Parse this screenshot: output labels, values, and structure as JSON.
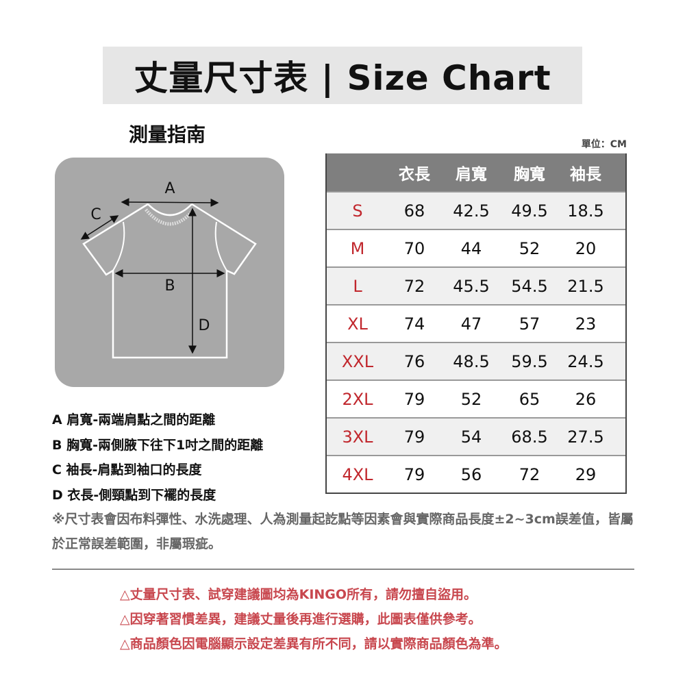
{
  "title": "丈量尺寸表 | Size Chart",
  "guide_title": "測量指南",
  "unit": "單位：CM",
  "diagram_labels": {
    "a": "A",
    "b": "B",
    "c": "C",
    "d": "D"
  },
  "table": {
    "headers": [
      "",
      "衣長",
      "肩寬",
      "胸寬",
      "袖長"
    ],
    "rows": [
      [
        "S",
        "68",
        "42.5",
        "49.5",
        "18.5"
      ],
      [
        "M",
        "70",
        "44",
        "52",
        "20"
      ],
      [
        "L",
        "72",
        "45.5",
        "54.5",
        "21.5"
      ],
      [
        "XL",
        "74",
        "47",
        "57",
        "23"
      ],
      [
        "XXL",
        "76",
        "48.5",
        "59.5",
        "24.5"
      ],
      [
        "2XL",
        "79",
        "52",
        "65",
        "26"
      ],
      [
        "3XL",
        "79",
        "54",
        "68.5",
        "27.5"
      ],
      [
        "4XL",
        "79",
        "56",
        "72",
        "29"
      ]
    ]
  },
  "notes": [
    "A 肩寬-兩端肩點之間的距離",
    "B 胸寬-兩側腋下往下1吋之間的距離",
    "C 袖長-肩點到袖口的長度",
    "D 衣長-側頸點到下襬的長度"
  ],
  "disclaimer": "※尺寸表會因布料彈性、水洗處理、人為測量起訖點等因素會與實際商品長度±2~3cm誤差值，皆屬於正常誤差範圍，非屬瑕疵。",
  "warnings": [
    "△丈量尺寸表、試穿建議圖均為KINGO所有，請勿擅自盜用。",
    "△因穿著習慣差異，建議丈量後再進行選購，此圖表僅供參考。",
    "△商品顏色因電腦顯示設定差異有所不同，請以實際商品顏色為準。"
  ],
  "colors": {
    "size_label": "#c1272d",
    "warning": "#c8474e",
    "header_bg": "#7f7f7f"
  }
}
